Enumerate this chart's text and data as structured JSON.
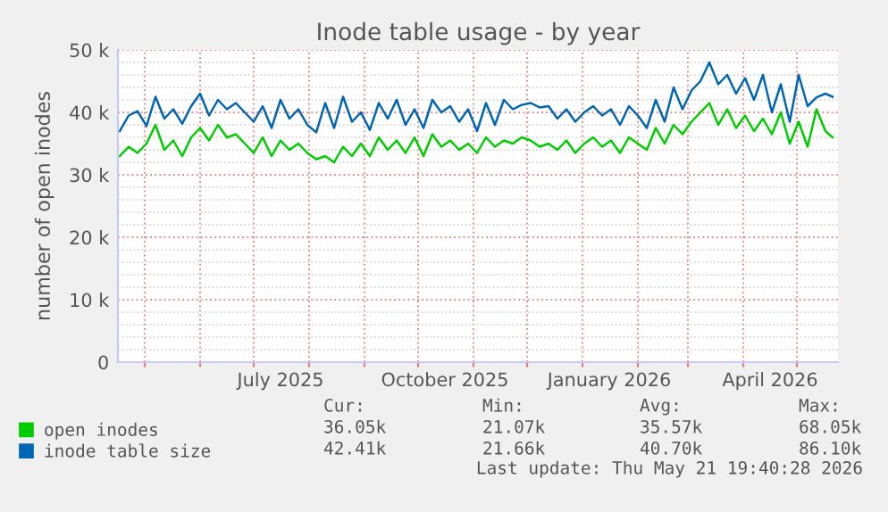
{
  "chart_data": {
    "type": "line",
    "title": "Inode table usage - by year",
    "ylabel": "number of open inodes",
    "x": [
      "2025-04-17",
      "2025-04-22",
      "2025-04-27",
      "2025-05-02",
      "2025-05-07",
      "2025-05-12",
      "2025-05-17",
      "2025-05-22",
      "2025-05-27",
      "2025-06-01",
      "2025-06-06",
      "2025-06-11",
      "2025-06-16",
      "2025-06-21",
      "2025-06-26",
      "2025-07-01",
      "2025-07-06",
      "2025-07-11",
      "2025-07-16",
      "2025-07-21",
      "2025-07-26",
      "2025-07-31",
      "2025-08-05",
      "2025-08-10",
      "2025-08-15",
      "2025-08-20",
      "2025-08-25",
      "2025-08-30",
      "2025-09-04",
      "2025-09-09",
      "2025-09-14",
      "2025-09-19",
      "2025-09-24",
      "2025-09-29",
      "2025-10-04",
      "2025-10-09",
      "2025-10-14",
      "2025-10-19",
      "2025-10-24",
      "2025-10-29",
      "2025-11-03",
      "2025-11-08",
      "2025-11-13",
      "2025-11-18",
      "2025-11-23",
      "2025-11-28",
      "2025-12-03",
      "2025-12-08",
      "2025-12-13",
      "2025-12-18",
      "2025-12-23",
      "2025-12-28",
      "2026-01-02",
      "2026-01-07",
      "2026-01-12",
      "2026-01-17",
      "2026-01-22",
      "2026-01-27",
      "2026-02-01",
      "2026-02-06",
      "2026-02-11",
      "2026-02-16",
      "2026-02-21",
      "2026-02-26",
      "2026-03-03",
      "2026-03-08",
      "2026-03-13",
      "2026-03-18",
      "2026-03-23",
      "2026-03-28",
      "2026-04-02",
      "2026-04-07",
      "2026-04-12",
      "2026-04-17",
      "2026-04-22",
      "2026-04-27",
      "2026-05-02",
      "2026-05-07",
      "2026-05-12",
      "2026-05-17",
      "2026-05-21"
    ],
    "series": [
      {
        "name": "open inodes",
        "color": "#00cc00",
        "values": [
          33000,
          34500,
          33500,
          35000,
          38000,
          34000,
          35500,
          33000,
          36000,
          37500,
          35500,
          38000,
          36000,
          36500,
          35000,
          33500,
          36000,
          33000,
          35500,
          34000,
          35000,
          33500,
          32500,
          33000,
          32000,
          34500,
          33000,
          35000,
          33000,
          36000,
          34000,
          35500,
          33500,
          36000,
          33000,
          36500,
          34500,
          35500,
          34000,
          35000,
          33500,
          36000,
          34500,
          35500,
          35000,
          36000,
          35500,
          34500,
          35000,
          34000,
          35500,
          33500,
          35000,
          36000,
          34500,
          35500,
          33500,
          36000,
          35000,
          34000,
          37500,
          35000,
          38000,
          36500,
          38500,
          40000,
          41500,
          38000,
          40500,
          37500,
          39500,
          37000,
          39000,
          36500,
          40000,
          35000,
          38500,
          34500,
          40500,
          37000,
          36000
        ]
      },
      {
        "name": "inode table size",
        "color": "#0066b3",
        "values": [
          37000,
          39500,
          40200,
          37800,
          42500,
          39000,
          40500,
          38200,
          41000,
          43000,
          39500,
          42000,
          40500,
          41500,
          40000,
          38500,
          41000,
          37500,
          42000,
          39000,
          40500,
          38000,
          36800,
          41500,
          37500,
          42500,
          38500,
          40000,
          37200,
          41500,
          39000,
          42000,
          38000,
          40500,
          37500,
          42000,
          40000,
          41000,
          38500,
          40500,
          37000,
          41500,
          38000,
          42000,
          40500,
          41200,
          41500,
          40800,
          41000,
          39000,
          40500,
          38500,
          40000,
          41000,
          39500,
          40500,
          38000,
          41000,
          39500,
          37500,
          42000,
          38500,
          44000,
          40500,
          43500,
          45000,
          48000,
          44500,
          46000,
          43000,
          45500,
          42000,
          46000,
          40000,
          44500,
          38500,
          46000,
          41000,
          42400,
          43000,
          42500
        ]
      }
    ],
    "xlim": [
      "2025-04-16",
      "2026-05-24"
    ],
    "xticks": [
      {
        "value": "2025-05-01",
        "label": null
      },
      {
        "value": "2025-06-01",
        "label": null
      },
      {
        "value": "2025-07-01",
        "label": null
      },
      {
        "value": "2025-07-16",
        "label": "July 2025"
      },
      {
        "value": "2025-08-01",
        "label": null
      },
      {
        "value": "2025-09-01",
        "label": null
      },
      {
        "value": "2025-10-01",
        "label": null
      },
      {
        "value": "2025-10-16",
        "label": "October 2025"
      },
      {
        "value": "2025-11-01",
        "label": null
      },
      {
        "value": "2025-12-01",
        "label": null
      },
      {
        "value": "2026-01-01",
        "label": null
      },
      {
        "value": "2026-01-16",
        "label": "January 2026"
      },
      {
        "value": "2026-02-01",
        "label": null
      },
      {
        "value": "2026-03-01",
        "label": null
      },
      {
        "value": "2026-04-01",
        "label": null
      },
      {
        "value": "2026-04-16",
        "label": "April 2026"
      },
      {
        "value": "2026-05-01",
        "label": null
      }
    ],
    "ylim": [
      0,
      50000
    ],
    "yticks": [
      {
        "value": 0,
        "label": "0"
      },
      {
        "value": 10000,
        "label": "10 k"
      },
      {
        "value": 20000,
        "label": "20 k"
      },
      {
        "value": 30000,
        "label": "30 k"
      },
      {
        "value": 40000,
        "label": "40 k"
      },
      {
        "value": 50000,
        "label": "50 k"
      }
    ],
    "grid": true,
    "legend": "bottom",
    "marker": "none",
    "line_style": "solid",
    "annotations": [
      "Cur:",
      "Min:",
      "Avg:",
      "Max:",
      "36.05k",
      "21.07k",
      "35.57k",
      "68.05k",
      "42.41k",
      "21.66k",
      "40.70k",
      "86.10k",
      "Last update: Thu May 21 19:40:28 2026"
    ]
  }
}
